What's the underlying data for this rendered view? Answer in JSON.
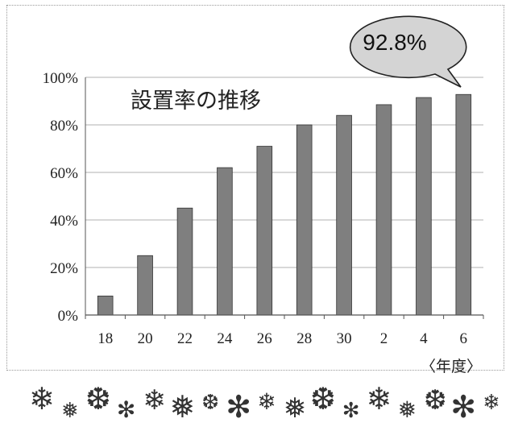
{
  "chart_data": {
    "type": "bar",
    "title": "設置率の推移",
    "categories": [
      "18",
      "20",
      "22",
      "24",
      "26",
      "28",
      "30",
      "2",
      "4",
      "6"
    ],
    "series": [
      {
        "values": [
          8,
          25,
          45,
          62,
          71,
          80,
          84,
          88.5,
          91.5,
          92.8
        ]
      }
    ],
    "ylim": [
      0,
      100
    ],
    "y_ticks": [
      "0%",
      "20%",
      "40%",
      "60%",
      "80%",
      "100%"
    ],
    "y_tick_values": [
      0,
      20,
      40,
      60,
      80,
      100
    ],
    "x_unit_label": "〈年度〉",
    "grid": true,
    "bar_color": "#7f7f7f",
    "callout": {
      "text": "92.8%",
      "fill": "#d4d4d4"
    }
  },
  "decoration": {
    "snowflakes": [
      "❄",
      "❅",
      "❆",
      "✻",
      "❄",
      "❅",
      "❆",
      "✻",
      "❄",
      "❅",
      "❆",
      "✻",
      "❄",
      "❅",
      "❆",
      "✻",
      "❄"
    ]
  }
}
